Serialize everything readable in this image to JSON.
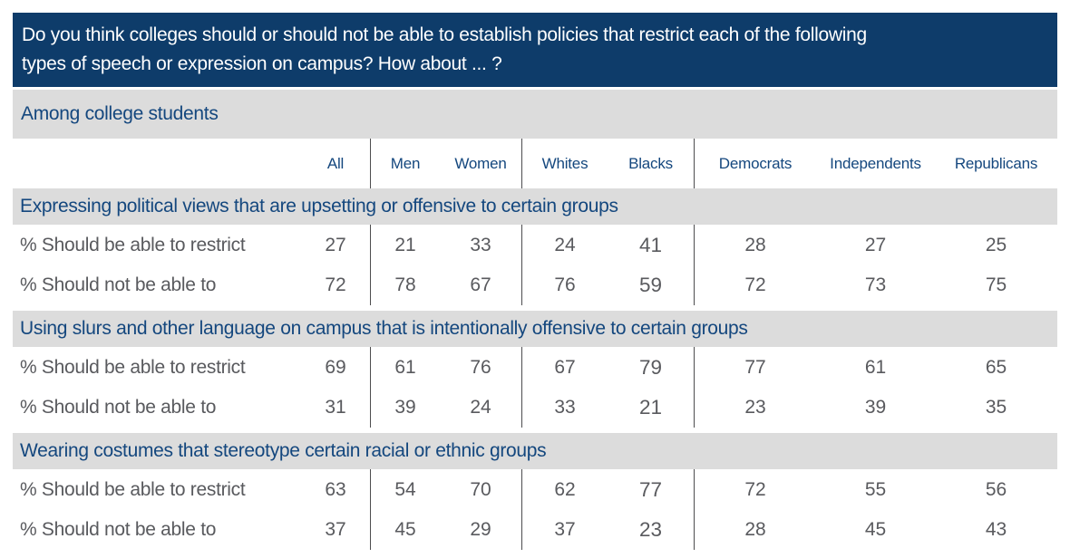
{
  "header": {
    "title_lines": [
      "Do you think colleges should or should not be able to establish policies that restrict each of the following",
      "types of speech or expression on campus? How about ... ?"
    ],
    "subtitle": "Among college students"
  },
  "colors": {
    "header_bg": "#0e3c6a",
    "band_bg": "#dcdcdc",
    "navy_text": "#14477e",
    "data_text": "#595a5e",
    "divider": "#4d4d4f"
  },
  "table": {
    "columns": [
      "All",
      "Men",
      "Women",
      "Whites",
      "Blacks",
      "Democrats",
      "Independents",
      "Republicans"
    ],
    "sections": [
      {
        "header": "Expressing political views that are upsetting or offensive to certain groups",
        "rows": [
          {
            "label": "% Should be able to restrict",
            "values": [
              27,
              21,
              33,
              24,
              41,
              28,
              27,
              25
            ]
          },
          {
            "label": "% Should not be able to",
            "values": [
              72,
              78,
              67,
              76,
              59,
              72,
              73,
              75
            ]
          }
        ]
      },
      {
        "header": "Using slurs and other language on campus that is intentionally offensive to certain groups",
        "rows": [
          {
            "label": "% Should be able to restrict",
            "values": [
              69,
              61,
              76,
              67,
              79,
              77,
              61,
              65
            ]
          },
          {
            "label": "% Should not be able to",
            "values": [
              31,
              39,
              24,
              33,
              21,
              23,
              39,
              35
            ]
          }
        ]
      },
      {
        "header": "Wearing costumes that stereotype certain racial or ethnic groups",
        "rows": [
          {
            "label": "% Should be able to restrict",
            "values": [
              63,
              54,
              70,
              62,
              77,
              72,
              55,
              56
            ]
          },
          {
            "label": "% Should not be able to",
            "values": [
              37,
              45,
              29,
              37,
              23,
              28,
              45,
              43
            ]
          }
        ]
      }
    ]
  },
  "chart_data": {
    "type": "table",
    "title": "Do you think colleges should or should not be able to establish policies that restrict each of the following types of speech or expression on campus? How about ... ?",
    "subtitle": "Among college students",
    "categories": [
      "All",
      "Men",
      "Women",
      "Whites",
      "Blacks",
      "Democrats",
      "Independents",
      "Republicans"
    ],
    "groups": [
      {
        "item": "Expressing political views that are upsetting or offensive to certain groups",
        "series": [
          {
            "name": "% Should be able to restrict",
            "values": [
              27,
              21,
              33,
              24,
              41,
              28,
              27,
              25
            ]
          },
          {
            "name": "% Should not be able to",
            "values": [
              72,
              78,
              67,
              76,
              59,
              72,
              73,
              75
            ]
          }
        ]
      },
      {
        "item": "Using slurs and other language on campus that is intentionally offensive to certain groups",
        "series": [
          {
            "name": "% Should be able to restrict",
            "values": [
              69,
              61,
              76,
              67,
              79,
              77,
              61,
              65
            ]
          },
          {
            "name": "% Should not be able to",
            "values": [
              31,
              39,
              24,
              33,
              21,
              23,
              39,
              35
            ]
          }
        ]
      },
      {
        "item": "Wearing costumes that stereotype certain racial or ethnic groups",
        "series": [
          {
            "name": "% Should be able to restrict",
            "values": [
              63,
              54,
              70,
              62,
              77,
              72,
              55,
              56
            ]
          },
          {
            "name": "% Should not be able to",
            "values": [
              37,
              45,
              29,
              37,
              23,
              28,
              45,
              43
            ]
          }
        ]
      }
    ]
  }
}
